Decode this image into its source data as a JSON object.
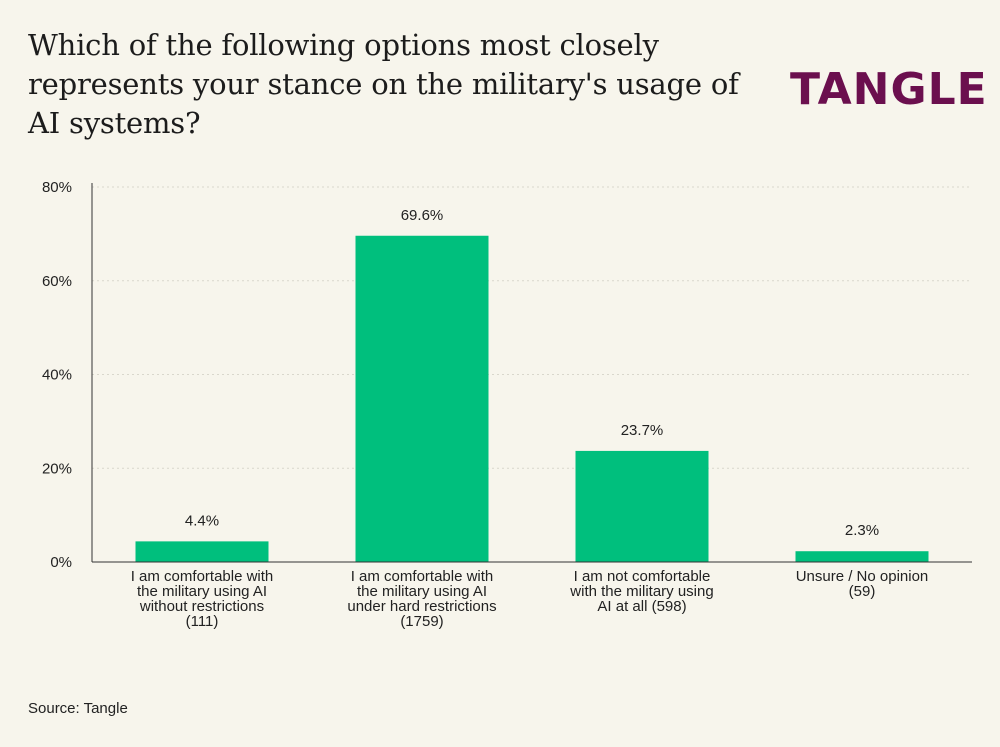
{
  "header": {
    "title": "Which of the following options most closely represents your stance on the military's usage of AI systems?",
    "logo_text": "TANGLE"
  },
  "footer": {
    "source": "Source: Tangle"
  },
  "colors": {
    "bar": "#00bf7d",
    "logo": "#6b0f4e",
    "background": "#f7f5ec"
  },
  "chart_data": {
    "type": "bar",
    "title": "Which of the following options most closely represents your stance on the military's usage of AI systems?",
    "categories": [
      "I am comfortable with the military using AI without restrictions (111)",
      "I am comfortable with the military using AI under hard restrictions (1759)",
      "I am not comfortable with the military using AI at all (598)",
      "Unsure / No opinion (59)"
    ],
    "values": [
      4.4,
      69.6,
      23.7,
      2.3
    ],
    "data_labels": [
      "4.4%",
      "69.6%",
      "23.7%",
      "2.3%"
    ],
    "ylim": [
      0,
      80
    ],
    "yticks": [
      0,
      20,
      40,
      60,
      80
    ],
    "ytick_labels": [
      "0%",
      "20%",
      "40%",
      "60%",
      "80%"
    ],
    "xlabel": "",
    "ylabel": "",
    "grid": true
  }
}
